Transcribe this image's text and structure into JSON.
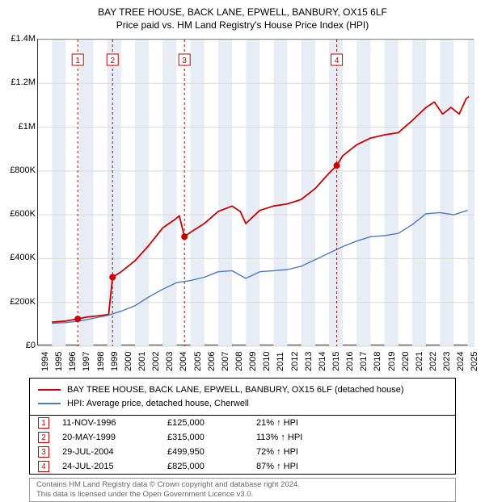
{
  "title": {
    "line1": "BAY TREE HOUSE, BACK LANE, EPWELL, BANBURY, OX15 6LF",
    "line2": "Price paid vs. HM Land Registry's House Price Index (HPI)"
  },
  "chart": {
    "type": "line",
    "background_color": "#ffffff",
    "border_color": "#333333",
    "band_color": "#e8edf5",
    "grid_color": "#d9d9d9",
    "xlim": [
      1994,
      2025.5
    ],
    "ylim": [
      0,
      1400000
    ],
    "ytick_step": 200000,
    "yticks": [
      "£0",
      "£200K",
      "£400K",
      "£600K",
      "£800K",
      "£1M",
      "£1.2M",
      "£1.4M"
    ],
    "xticks": [
      1994,
      1995,
      1996,
      1997,
      1998,
      1999,
      2000,
      2001,
      2002,
      2003,
      2004,
      2005,
      2006,
      2007,
      2008,
      2009,
      2010,
      2011,
      2012,
      2013,
      2014,
      2015,
      2016,
      2017,
      2018,
      2019,
      2020,
      2021,
      2022,
      2023,
      2024,
      2025
    ],
    "series": [
      {
        "name": "property",
        "label": "BAY TREE HOUSE, BACK LANE, EPWELL, BANBURY, OX15 6LF (detached house)",
        "color": "#cc0000",
        "width": 1.8,
        "points": [
          [
            1995.0,
            110000
          ],
          [
            1996.0,
            115000
          ],
          [
            1996.87,
            125000
          ],
          [
            1997.5,
            133000
          ],
          [
            1998.5,
            140000
          ],
          [
            1999.1,
            145000
          ],
          [
            1999.38,
            315000
          ],
          [
            2000.0,
            340000
          ],
          [
            2001.0,
            390000
          ],
          [
            2002.0,
            460000
          ],
          [
            2003.0,
            540000
          ],
          [
            2003.8,
            575000
          ],
          [
            2004.2,
            595000
          ],
          [
            2004.57,
            499950
          ],
          [
            2005.0,
            520000
          ],
          [
            2006.0,
            560000
          ],
          [
            2007.0,
            615000
          ],
          [
            2008.0,
            640000
          ],
          [
            2008.6,
            615000
          ],
          [
            2009.0,
            560000
          ],
          [
            2010.0,
            620000
          ],
          [
            2011.0,
            640000
          ],
          [
            2012.0,
            650000
          ],
          [
            2013.0,
            670000
          ],
          [
            2014.0,
            720000
          ],
          [
            2015.0,
            790000
          ],
          [
            2015.56,
            825000
          ],
          [
            2016.0,
            870000
          ],
          [
            2017.0,
            920000
          ],
          [
            2018.0,
            950000
          ],
          [
            2019.0,
            965000
          ],
          [
            2020.0,
            975000
          ],
          [
            2021.0,
            1030000
          ],
          [
            2022.0,
            1090000
          ],
          [
            2022.6,
            1115000
          ],
          [
            2023.2,
            1060000
          ],
          [
            2023.8,
            1090000
          ],
          [
            2024.4,
            1060000
          ],
          [
            2024.9,
            1130000
          ],
          [
            2025.1,
            1140000
          ]
        ]
      },
      {
        "name": "hpi",
        "label": "HPI: Average price, detached house, Cherwell",
        "color": "#4a7bbf",
        "width": 1.4,
        "points": [
          [
            1995.0,
            105000
          ],
          [
            1996.0,
            108000
          ],
          [
            1997.0,
            115000
          ],
          [
            1998.0,
            128000
          ],
          [
            1999.0,
            140000
          ],
          [
            2000.0,
            160000
          ],
          [
            2001.0,
            185000
          ],
          [
            2002.0,
            225000
          ],
          [
            2003.0,
            260000
          ],
          [
            2004.0,
            290000
          ],
          [
            2005.0,
            300000
          ],
          [
            2006.0,
            315000
          ],
          [
            2007.0,
            340000
          ],
          [
            2008.0,
            345000
          ],
          [
            2009.0,
            310000
          ],
          [
            2010.0,
            340000
          ],
          [
            2011.0,
            345000
          ],
          [
            2012.0,
            350000
          ],
          [
            2013.0,
            365000
          ],
          [
            2014.0,
            395000
          ],
          [
            2015.0,
            425000
          ],
          [
            2016.0,
            455000
          ],
          [
            2017.0,
            480000
          ],
          [
            2018.0,
            500000
          ],
          [
            2019.0,
            505000
          ],
          [
            2020.0,
            515000
          ],
          [
            2021.0,
            555000
          ],
          [
            2022.0,
            605000
          ],
          [
            2023.0,
            610000
          ],
          [
            2024.0,
            600000
          ],
          [
            2025.0,
            620000
          ]
        ]
      }
    ],
    "sale_markers": {
      "color": "#cc0000",
      "vline_dash": "3,3",
      "vline_color": "#cc0000",
      "box_border": "#cc0000",
      "box_bg": "#ffffff",
      "items": [
        {
          "n": "1",
          "x": 1996.87,
          "y": 125000
        },
        {
          "n": "2",
          "x": 1999.38,
          "y": 315000
        },
        {
          "n": "3",
          "x": 2004.57,
          "y": 499950
        },
        {
          "n": "4",
          "x": 2015.56,
          "y": 825000
        }
      ]
    }
  },
  "legend": {
    "series1_label": "BAY TREE HOUSE, BACK LANE, EPWELL, BANBURY, OX15 6LF (detached house)",
    "series2_label": "HPI: Average price, detached house, Cherwell"
  },
  "sales_table": {
    "rows": [
      {
        "n": "1",
        "date": "11-NOV-1996",
        "price": "£125,000",
        "delta": "21% ↑ HPI"
      },
      {
        "n": "2",
        "date": "20-MAY-1999",
        "price": "£315,000",
        "delta": "113% ↑ HPI"
      },
      {
        "n": "3",
        "date": "29-JUL-2004",
        "price": "£499,950",
        "delta": "72% ↑ HPI"
      },
      {
        "n": "4",
        "date": "24-JUL-2015",
        "price": "£825,000",
        "delta": "87% ↑ HPI"
      }
    ]
  },
  "footnote": {
    "line1": "Contains HM Land Registry data © Crown copyright and database right 2024.",
    "line2": "This data is licensed under the Open Government Licence v3.0."
  }
}
